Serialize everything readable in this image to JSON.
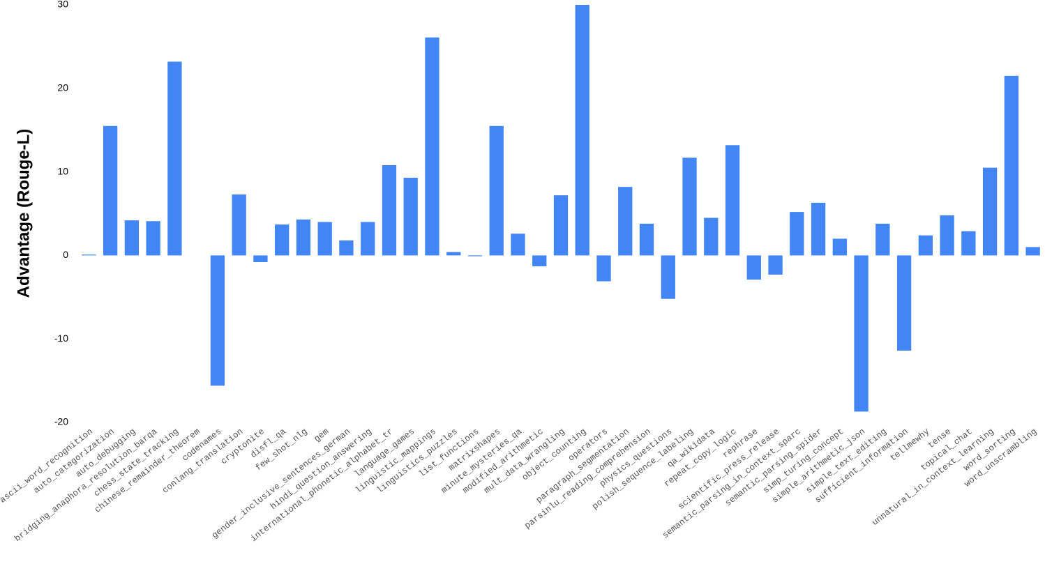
{
  "chart_data": {
    "type": "bar",
    "y_label": "Advantage (Rouge-L)",
    "color": "#4285f4",
    "ylim": [
      -20,
      30
    ],
    "yticks": [
      -20,
      -10,
      0,
      10,
      20,
      30
    ],
    "grid": false,
    "categories": [
      "ascii_word_recognition",
      "auto_categorization",
      "auto_debugging",
      "bridging_anaphora_resolution_barqa",
      "chess_state_tracking",
      "chinese_remainder_theorem",
      "codenames",
      "conlang_translation",
      "cryptonite",
      "disfl_qa",
      "few_shot_nlg",
      "gem",
      "gender_inclusive_sentences_german",
      "hindi_question_answering",
      "international_phonetic_alphabet_tr",
      "language_games",
      "linguistic_mappings",
      "linguistics_puzzles",
      "list_functions",
      "matrixshapes",
      "minute_mysteries_qa",
      "modified_arithmetic",
      "mult_data_wrangling",
      "object_counting",
      "operators",
      "paragraph_segmentation",
      "parsinlu_reading_comprehension",
      "physics_questions",
      "polish_sequence_labeling",
      "qa_wikidata",
      "repeat_copy_logic",
      "rephrase",
      "scientific_press_release",
      "semantic_parsing_in_context_sparc",
      "semantic_parsing_spider",
      "simp_turing_concept",
      "simple_arithmetic_json",
      "simple_text_editing",
      "sufficient_information",
      "tellmewhy",
      "tense",
      "topical_chat",
      "unnatural_in_context_learning",
      "word_sorting",
      "word_unscrambling"
    ],
    "values": [
      0.1,
      15.5,
      4.2,
      4.1,
      23.2,
      0,
      -15.6,
      7.3,
      -0.8,
      3.7,
      4.3,
      4.0,
      1.8,
      4.0,
      10.8,
      9.3,
      26.1,
      0.4,
      -0.1,
      15.5,
      2.6,
      -1.3,
      7.2,
      30,
      -3.1,
      8.2,
      3.8,
      -5.2,
      11.7,
      4.5,
      13.2,
      -2.9,
      -2.3,
      5.2,
      6.3,
      2.0,
      -18.7,
      3.8,
      -11.4,
      2.4,
      4.8,
      2.9,
      10.5,
      21.5,
      1.0
    ]
  }
}
